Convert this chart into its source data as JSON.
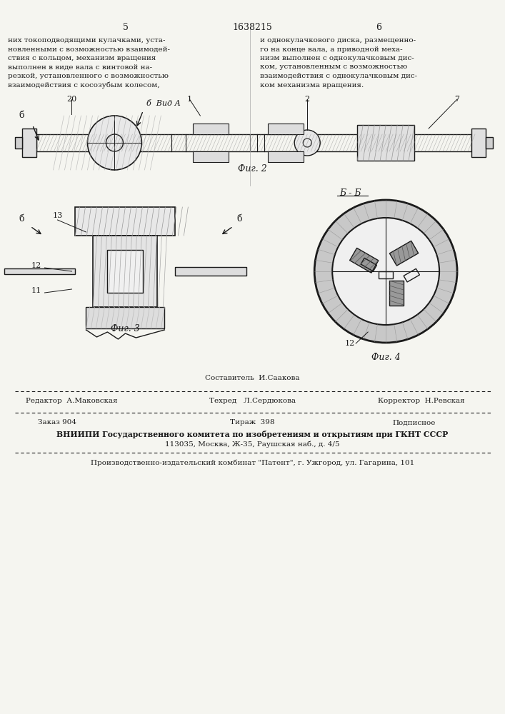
{
  "page_number_left": "5",
  "patent_number": "1638215",
  "page_number_right": "6",
  "text_left": "них токоподводящими кулачками, уста-\nновленными с возможностью взаимодей-\nствия с кольцом, механизм вращения\nвыполнен в виде вала с винтовой на-\nрезкой, установленного с возможностью\nвзаимодействия с косозубым колесом,",
  "text_right": "и однокулачкового диска, размещенно-\nго на конце вала, а приводной меха-\nнизм выполнен с однокулачковым дис-\nком, установленным с возможностью\nвзаимодействия с однокулачковым дис-\nком механизма вращения.",
  "fig2_label": "Фиг. 2",
  "fig3_label": "Фиг. 3",
  "fig4_label": "Фиг. 4",
  "view_label": "б Вид А",
  "section_label": "Б - Б",
  "numbers_fig2": [
    "20",
    "б",
    "1",
    "2",
    "7"
  ],
  "numbers_fig3": [
    "13",
    "12",
    "11",
    "б",
    "б"
  ],
  "numbers_fig4": [
    "12"
  ],
  "footer_line1_col1": "Редактор  А.Маковская",
  "footer_line1_col2": "Составитель  И.Саакова",
  "footer_line1_col3": "",
  "footer_line2_col1": "",
  "footer_line2_col2": "Техред   Л.Сердюкова",
  "footer_line2_col3": "Корректор  Н.Ревская",
  "footer_zakas": "Заказ 904",
  "footer_tirazh": "Тираж  398",
  "footer_podpisnoe": "Подписное",
  "footer_vniipи": "ВНИИПИ Государственного комитета по изобретениям и открытиям при ГКНТ СССР",
  "footer_address": "113035, Москва, Ж-35, Раушская наб., д. 4/5",
  "footer_production": "Производственно-издательский комбинат \"Патент\", г. Ужгород, ул. Гагарина, 101",
  "bg_color": "#f5f5f0",
  "line_color": "#1a1a1a",
  "text_color": "#1a1a1a"
}
